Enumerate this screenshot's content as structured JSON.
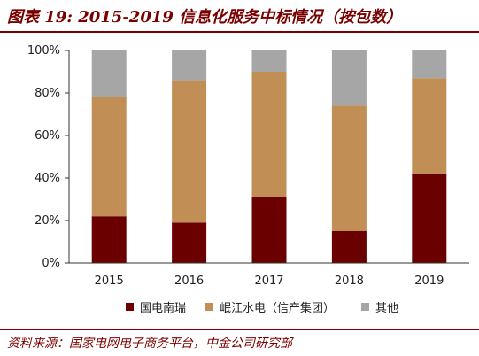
{
  "header": {
    "title": "图表 19: 2015-2019 信息化服务中标情况（按包数）"
  },
  "footer": {
    "source": "资料来源：国家电网电子商务平台，中金公司研究部"
  },
  "chart_data": {
    "type": "bar",
    "stacked": true,
    "categories": [
      "2015",
      "2016",
      "2017",
      "2018",
      "2019"
    ],
    "series": [
      {
        "name": "国电南瑞",
        "color": "#6b0000",
        "values": [
          22,
          19,
          31,
          15,
          42
        ]
      },
      {
        "name": "岷江水电（信产集团）",
        "color": "#c18e55",
        "values": [
          56,
          67,
          59,
          59,
          45
        ]
      },
      {
        "name": "其他",
        "color": "#a6a6a6",
        "values": [
          22,
          14,
          10,
          26,
          13
        ]
      }
    ],
    "yticks": [
      "0%",
      "20%",
      "40%",
      "60%",
      "80%",
      "100%"
    ],
    "ylim": [
      0,
      100
    ],
    "legend_position": "bottom",
    "grid": false
  }
}
